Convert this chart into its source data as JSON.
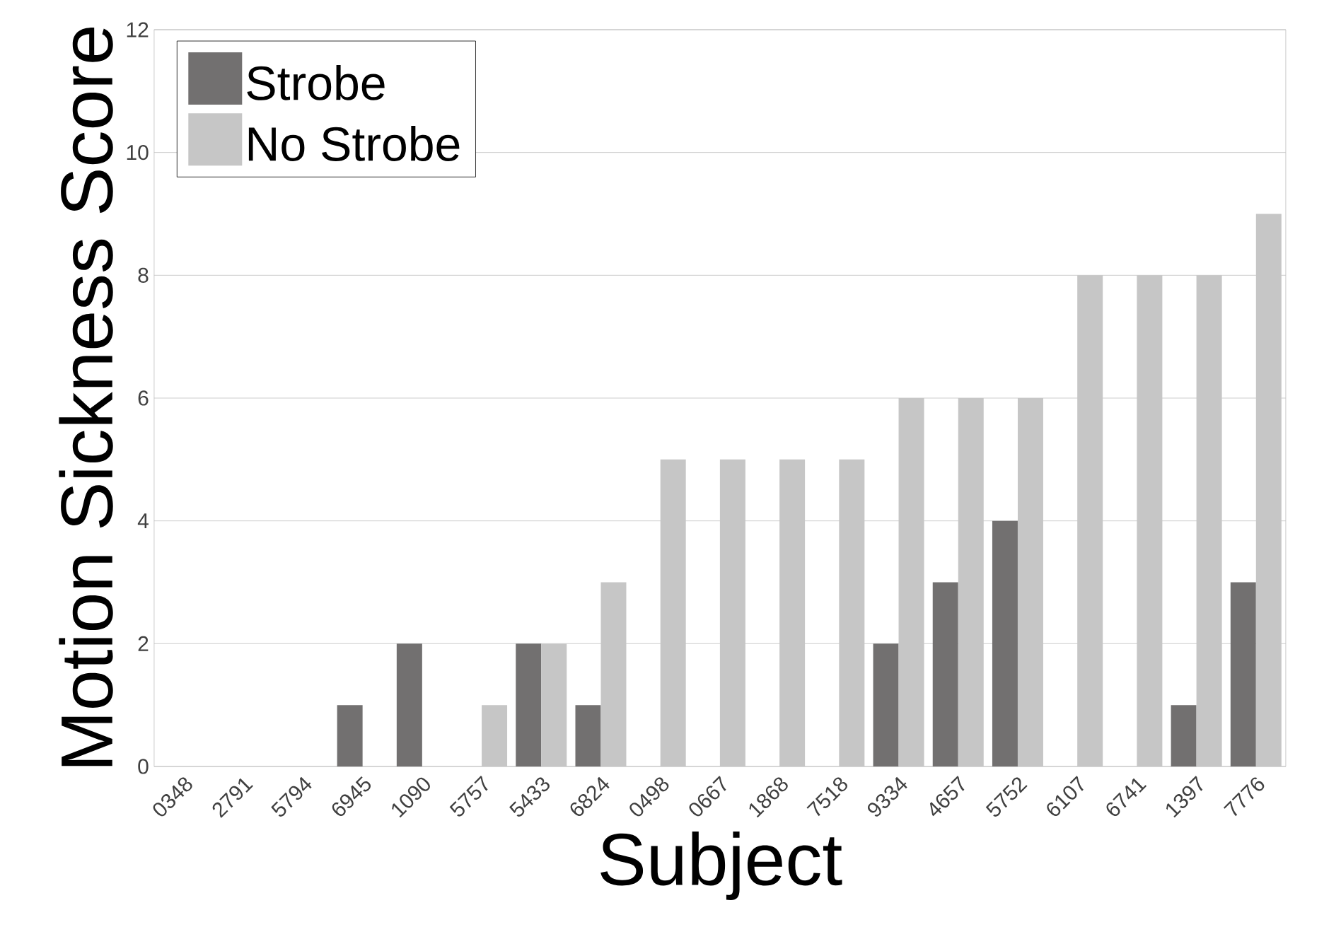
{
  "chart_data": {
    "type": "bar",
    "xlabel": "Subject",
    "ylabel": "Motion Sickness Score",
    "categories": [
      "0348",
      "2791",
      "5794",
      "6945",
      "1090",
      "5757",
      "5433",
      "6824",
      "0498",
      "0667",
      "1868",
      "7518",
      "9334",
      "4657",
      "5752",
      "6107",
      "6741",
      "1397",
      "7776"
    ],
    "series": [
      {
        "name": "Strobe",
        "color": "#727070",
        "values": [
          0,
          0,
          0,
          1,
          2,
          0,
          2,
          1,
          0,
          0,
          0,
          0,
          2,
          3,
          4,
          0,
          0,
          1,
          3
        ]
      },
      {
        "name": "No Strobe",
        "color": "#c6c6c6",
        "values": [
          0,
          0,
          0,
          0,
          0,
          1,
          2,
          3,
          5,
          5,
          5,
          5,
          6,
          6,
          6,
          8,
          8,
          8,
          9
        ]
      }
    ],
    "ylim": [
      0,
      12
    ],
    "yticks": [
      0,
      2,
      4,
      6,
      8,
      10,
      12
    ],
    "grid": "y",
    "legend": "top left"
  }
}
